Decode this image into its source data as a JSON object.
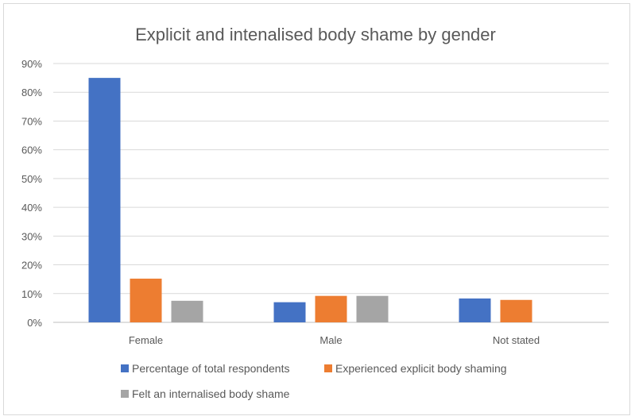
{
  "chart_data": {
    "type": "bar",
    "title": "Explicit and intenalised body shame by gender",
    "categories": [
      "Female",
      "Male",
      "Not stated"
    ],
    "series": [
      {
        "name": "Percentage of total respondents",
        "values": [
          85,
          7,
          8.3
        ],
        "color": "#4472c4"
      },
      {
        "name": "Experienced explicit body shaming",
        "values": [
          15.2,
          9.2,
          7.8
        ],
        "color": "#ed7d31"
      },
      {
        "name": "Felt an internalised body shame",
        "values": [
          7.5,
          9.2,
          0
        ],
        "color": "#a5a5a5"
      }
    ],
    "y_ticks": [
      "0%",
      "10%",
      "20%",
      "30%",
      "40%",
      "50%",
      "60%",
      "70%",
      "80%",
      "90%"
    ],
    "ylim": [
      0,
      90
    ],
    "grid": true,
    "legend_position": "bottom",
    "xlabel": "",
    "ylabel": ""
  }
}
